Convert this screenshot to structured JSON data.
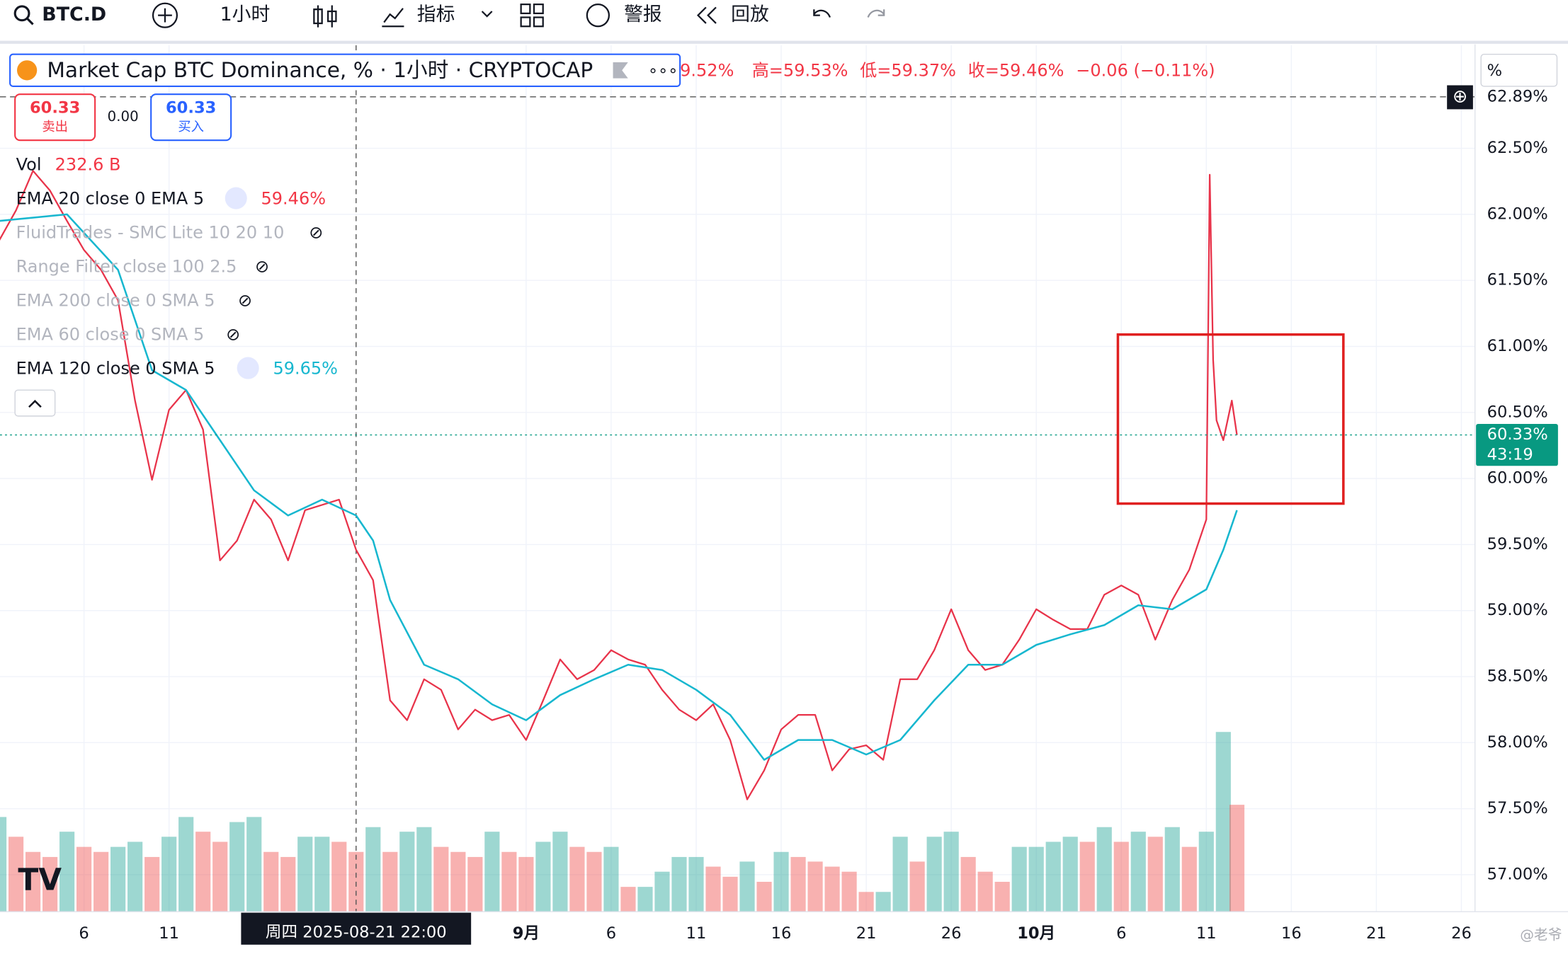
{
  "toolbar": {
    "symbol": "BTC.D",
    "interval": "1小时",
    "indicators": "指标",
    "alerts": "警报",
    "replay": "回放"
  },
  "legend": {
    "title": "Market Cap BTC Dominance, % · 1小时 · CRYPTOCAP",
    "open_cut": "9.52%",
    "high": "高=59.53%",
    "low": "低=59.37%",
    "close": "收=59.46%",
    "change": "−0.06 (−0.11%)",
    "sell_price": "60.33",
    "sell": "卖出",
    "spread": "0.00",
    "buy_price": "60.33",
    "buy": "买入",
    "hidden_indicators": [
      "FluidTrades - SMC Lite 10 20 10",
      "Range Filter close 100 2.5",
      "EMA 200 close 0 SMA 5",
      "EMA 60 close 0 SMA 5"
    ]
  },
  "chart_data": {
    "type": "line",
    "unit": "%",
    "watermark": "@老爷",
    "xlim": [
      1.06,
      87.8
    ],
    "ylim": [
      56.72,
      63.28
    ],
    "xticks": [
      {
        "value": 6,
        "label": "6"
      },
      {
        "value": 11,
        "label": "11"
      },
      {
        "value": 32,
        "label": "9月"
      },
      {
        "value": 37,
        "label": "6"
      },
      {
        "value": 42,
        "label": "11"
      },
      {
        "value": 47,
        "label": "16"
      },
      {
        "value": 52,
        "label": "21"
      },
      {
        "value": 57,
        "label": "26"
      },
      {
        "value": 62,
        "label": "10月"
      },
      {
        "value": 67,
        "label": "6"
      },
      {
        "value": 72,
        "label": "11"
      },
      {
        "value": 77,
        "label": "16"
      },
      {
        "value": 82,
        "label": "21"
      },
      {
        "value": 87,
        "label": "26"
      }
    ],
    "yticks": [
      {
        "value": 57,
        "label": "57.00%"
      },
      {
        "value": 57.5,
        "label": "57.50%"
      },
      {
        "value": 58,
        "label": "58.00%"
      },
      {
        "value": 58.5,
        "label": "58.50%"
      },
      {
        "value": 59,
        "label": "59.00%"
      },
      {
        "value": 59.5,
        "label": "59.50%"
      },
      {
        "value": 60,
        "label": "60.00%"
      },
      {
        "value": 60.5,
        "label": "60.50%"
      },
      {
        "value": 61,
        "label": "61.00%"
      },
      {
        "value": 61.5,
        "label": "61.50%"
      },
      {
        "value": 62,
        "label": "62.00%"
      },
      {
        "value": 62.5,
        "label": "62.50%"
      }
    ],
    "grid": true,
    "top_line": {
      "value": 62.89,
      "label": "62.89%"
    },
    "last_price": {
      "value": 60.33,
      "label": "60.33%",
      "countdown": "43:19",
      "color": "#089981"
    },
    "crosshair": {
      "x": 22,
      "label": "周四 2025-08-21  22:00"
    },
    "highlight_box": {
      "x": [
        66.8,
        80.06
      ],
      "y": [
        59.81,
        61.09
      ],
      "color": "#e02020"
    },
    "series": [
      {
        "name": "EMA 20 close 0 EMA 5",
        "color": "#e8334a",
        "legend_value": {
          "value": 59.46,
          "label": "59.46%"
        },
        "x": [
          1,
          2,
          3,
          4,
          5,
          6,
          7,
          8,
          9,
          10,
          11,
          12,
          13,
          14,
          15,
          16,
          17,
          18,
          19,
          20,
          21,
          22,
          23,
          24,
          25,
          26,
          27,
          28,
          29,
          30,
          31,
          32,
          33,
          34,
          35,
          36,
          37,
          38,
          39,
          40,
          41,
          42,
          43,
          44,
          45,
          46,
          47,
          48,
          49,
          50,
          51,
          52,
          53,
          54,
          55,
          56,
          57,
          58,
          59,
          60,
          61,
          62,
          63,
          64,
          65,
          66,
          67,
          68,
          69,
          70,
          71,
          72,
          72.2,
          72.4,
          72.6,
          73,
          73.5,
          73.8
        ],
        "values": [
          61.8,
          62.03,
          62.33,
          62.18,
          61.95,
          61.73,
          61.58,
          61.35,
          60.59,
          59.99,
          60.52,
          60.67,
          60.37,
          59.38,
          59.53,
          59.84,
          59.69,
          59.38,
          59.76,
          59.8,
          59.84,
          59.46,
          59.23,
          58.32,
          58.17,
          58.48,
          58.4,
          58.1,
          58.25,
          58.17,
          58.21,
          58.02,
          58.32,
          58.63,
          58.48,
          58.55,
          58.7,
          58.63,
          58.59,
          58.4,
          58.25,
          58.17,
          58.29,
          58.02,
          57.57,
          57.79,
          58.1,
          58.21,
          58.21,
          57.79,
          57.95,
          57.98,
          57.87,
          58.48,
          58.48,
          58.7,
          59.01,
          58.7,
          58.55,
          58.59,
          58.78,
          59.01,
          58.93,
          58.86,
          58.86,
          59.12,
          59.19,
          59.12,
          58.78,
          59.08,
          59.31,
          59.69,
          62.3,
          60.9,
          60.44,
          60.29,
          60.59,
          60.33
        ]
      },
      {
        "name": "EMA 120 close 0 SMA 5",
        "color": "#17b7cf",
        "legend_value": {
          "value": 59.65,
          "label": "59.65%"
        },
        "x": [
          1,
          5,
          8,
          10,
          12,
          14,
          16,
          18,
          20,
          22,
          23,
          24,
          26,
          28,
          30,
          32,
          34,
          36,
          38,
          40,
          42,
          44,
          46,
          48,
          50,
          52,
          54,
          56,
          58,
          60,
          62,
          64,
          66,
          68,
          70,
          72,
          73,
          73.8
        ],
        "values": [
          61.95,
          62.0,
          61.58,
          60.82,
          60.67,
          60.29,
          59.91,
          59.72,
          59.84,
          59.72,
          59.53,
          59.08,
          58.59,
          58.48,
          58.29,
          58.17,
          58.36,
          58.48,
          58.59,
          58.55,
          58.4,
          58.21,
          57.87,
          58.02,
          58.02,
          57.91,
          58.02,
          58.32,
          58.59,
          58.59,
          58.74,
          58.82,
          58.89,
          59.04,
          59.01,
          59.16,
          59.46,
          59.76
        ]
      }
    ],
    "volume": {
      "name": "Vol",
      "label": "232.6 B",
      "up_color": "#26a69a",
      "down_color": "#ef5350",
      "x": [
        1,
        2,
        3,
        4,
        5,
        6,
        7,
        8,
        9,
        10,
        11,
        12,
        13,
        14,
        15,
        16,
        17,
        18,
        19,
        20,
        21,
        22,
        23,
        24,
        25,
        26,
        27,
        28,
        29,
        30,
        31,
        32,
        33,
        34,
        35,
        36,
        37,
        38,
        39,
        40,
        41,
        42,
        43,
        44,
        45,
        46,
        47,
        48,
        49,
        50,
        51,
        52,
        53,
        54,
        55,
        56,
        57,
        58,
        59,
        60,
        61,
        62,
        63,
        64,
        65,
        66,
        67,
        68,
        69,
        70,
        71,
        72,
        73,
        73.8
      ],
      "values": [
        206,
        163,
        130,
        119,
        174,
        141,
        130,
        141,
        152,
        119,
        163,
        206,
        174,
        152,
        195,
        206,
        130,
        119,
        163,
        163,
        152,
        130,
        184,
        130,
        174,
        184,
        141,
        130,
        119,
        174,
        130,
        119,
        152,
        174,
        141,
        130,
        141,
        54,
        54,
        87,
        119,
        119,
        98,
        76,
        109,
        65,
        130,
        119,
        109,
        98,
        87,
        43,
        43,
        163,
        109,
        163,
        174,
        119,
        87,
        65,
        141,
        141,
        152,
        163,
        152,
        184,
        152,
        174,
        163,
        184,
        141,
        174,
        391,
        232.6
      ]
    }
  }
}
